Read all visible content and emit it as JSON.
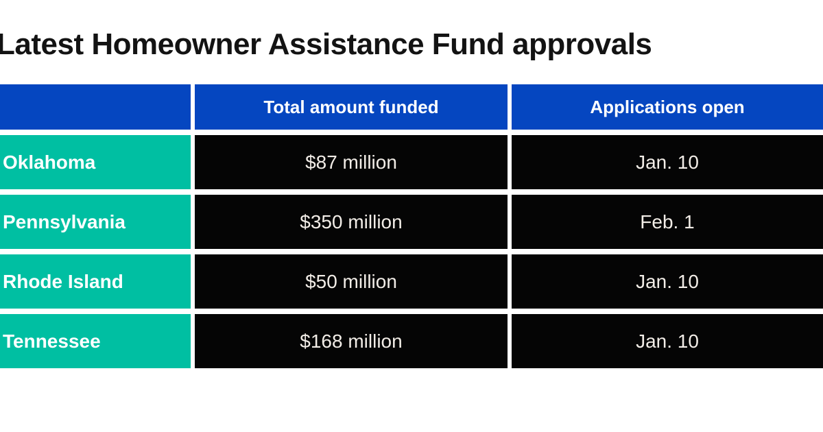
{
  "title": "Latest Homeowner Assistance Fund approvals",
  "chart_data": {
    "type": "table",
    "title": "Latest Homeowner Assistance Fund approvals",
    "columns": [
      "",
      "Total amount funded",
      "Applications open"
    ],
    "rows": [
      [
        "Oklahoma",
        "$87 million",
        "Jan. 10"
      ],
      [
        "Pennsylvania",
        "$350 million",
        "Feb. 1"
      ],
      [
        "Rhode Island",
        "$50 million",
        "Jan. 10"
      ],
      [
        "Tennessee",
        "$168 million",
        "Jan. 10"
      ]
    ],
    "total_amount_funded_million_usd": {
      "Oklahoma": 87,
      "Pennsylvania": 350,
      "Rhode Island": 50,
      "Tennessee": 168
    }
  },
  "colors": {
    "header-bg": "#0546c0",
    "state-bg": "#00bfa2",
    "cell-bg": "#050505",
    "cell-text": "#f2ede7",
    "title-color": "#131313"
  }
}
